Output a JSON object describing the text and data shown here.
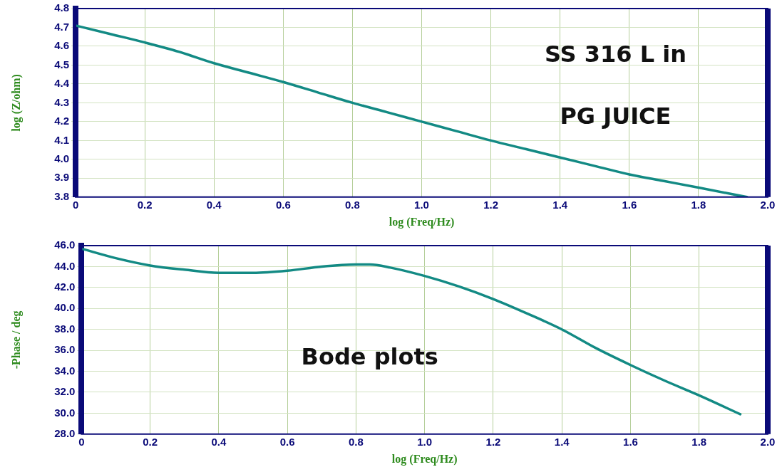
{
  "chart_data": [
    {
      "type": "line",
      "xlabel": "log (Freq/Hz)",
      "ylabel": "log (Z/ohm)",
      "annotations": [
        "SS 316 L in",
        "PG JUICE"
      ],
      "x": [
        0,
        0.1,
        0.2,
        0.3,
        0.4,
        0.5,
        0.6,
        0.7,
        0.8,
        0.9,
        1.0,
        1.1,
        1.2,
        1.3,
        1.4,
        1.5,
        1.6,
        1.7,
        1.8,
        1.94
      ],
      "series": [
        {
          "color": "#138a84",
          "values": [
            4.71,
            4.665,
            4.62,
            4.57,
            4.51,
            4.46,
            4.41,
            4.355,
            4.3,
            4.25,
            4.2,
            4.15,
            4.1,
            4.055,
            4.01,
            3.965,
            3.92,
            3.885,
            3.85,
            3.8
          ]
        }
      ],
      "xlim": [
        0,
        2.0
      ],
      "xticks": [
        0,
        {
          "value": 0.2,
          "label": "0.2"
        },
        {
          "value": 0.4,
          "label": "0.4"
        },
        {
          "value": 0.6,
          "label": "0.6"
        },
        {
          "value": 0.8,
          "label": "0.8"
        },
        {
          "value": 1,
          "label": "1.0"
        },
        {
          "value": 1.2,
          "label": "1.2"
        },
        {
          "value": 1.4,
          "label": "1.4"
        },
        {
          "value": 1.6,
          "label": "1.6"
        },
        {
          "value": 1.8,
          "label": "1.8"
        },
        {
          "value": 2,
          "label": "2.0"
        }
      ],
      "ylim": [
        3.8,
        4.8
      ],
      "yticks": [
        3.8,
        3.9,
        {
          "value": 4,
          "label": "4.0"
        },
        4.1,
        4.2,
        4.3,
        4.4,
        4.5,
        4.6,
        4.7,
        4.8
      ],
      "grid": true,
      "marker": "none",
      "line_style": "solid"
    },
    {
      "type": "line",
      "xlabel": "log (Freq/Hz)",
      "ylabel": "-Phase / deg",
      "annotations": [
        "Bode plots"
      ],
      "x": [
        0,
        0.1,
        0.2,
        0.3,
        0.4,
        0.5,
        0.6,
        0.7,
        0.8,
        0.84,
        0.9,
        1.0,
        1.1,
        1.2,
        1.3,
        1.4,
        1.5,
        1.6,
        1.7,
        1.8,
        1.92
      ],
      "series": [
        {
          "color": "#138a84",
          "values": [
            45.7,
            44.8,
            44.1,
            43.7,
            43.4,
            43.4,
            43.6,
            44.0,
            44.2,
            44.2,
            43.9,
            43.1,
            42.1,
            40.9,
            39.5,
            38.0,
            36.2,
            34.6,
            33.1,
            31.7,
            29.9
          ]
        }
      ],
      "xlim": [
        0,
        2.0
      ],
      "xticks": [
        0,
        {
          "value": 0.2,
          "label": "0.2"
        },
        {
          "value": 0.4,
          "label": "0.4"
        },
        {
          "value": 0.6,
          "label": "0.6"
        },
        {
          "value": 0.8,
          "label": "0.8"
        },
        {
          "value": 1,
          "label": "1.0"
        },
        {
          "value": 1.2,
          "label": "1.2"
        },
        {
          "value": 1.4,
          "label": "1.4"
        },
        {
          "value": 1.6,
          "label": "1.6"
        },
        {
          "value": 1.8,
          "label": "1.8"
        },
        {
          "value": 2,
          "label": "2.0"
        }
      ],
      "ylim": [
        28,
        46
      ],
      "yticks": [
        {
          "value": 28,
          "label": "28.0"
        },
        {
          "value": 30,
          "label": "30.0"
        },
        {
          "value": 32,
          "label": "32.0"
        },
        {
          "value": 34,
          "label": "34.0"
        },
        {
          "value": 36,
          "label": "36.0"
        },
        {
          "value": 38,
          "label": "38.0"
        },
        {
          "value": 40,
          "label": "40.0"
        },
        {
          "value": 42,
          "label": "42.0"
        },
        {
          "value": 44,
          "label": "44.0"
        },
        {
          "value": 46,
          "label": "46.0"
        }
      ],
      "grid": true,
      "marker": "none",
      "line_style": "solid"
    }
  ]
}
